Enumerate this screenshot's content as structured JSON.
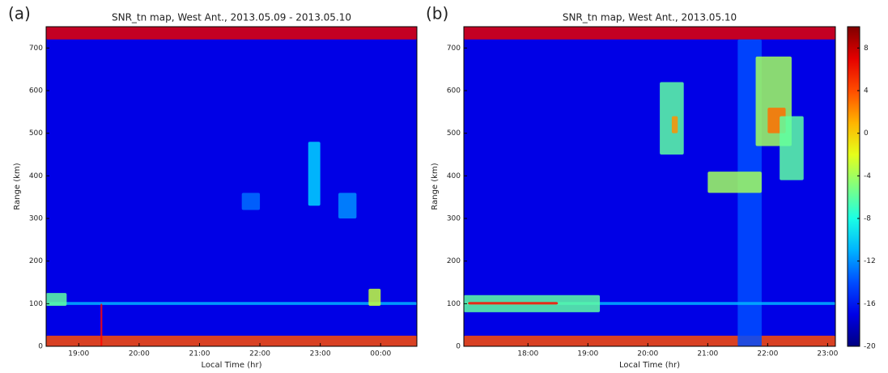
{
  "chart_data": [
    {
      "type": "heatmap",
      "panel_label": "(a)",
      "title": "SNR_tn map, West Ant., 2013.05.09 - 2013.05.10",
      "xlabel": "Local Time (hr)",
      "ylabel": "Range (km)",
      "xlim": [
        18.46,
        24.6
      ],
      "ylim": [
        0,
        750
      ],
      "xticks": [
        {
          "value": 19,
          "label": "19:00"
        },
        {
          "value": 20,
          "label": "20:00"
        },
        {
          "value": 21,
          "label": "21:00"
        },
        {
          "value": 22,
          "label": "22:00"
        },
        {
          "value": 23,
          "label": "23:00"
        },
        {
          "value": 24,
          "label": "00:00"
        }
      ],
      "yticks": [
        0,
        100,
        200,
        300,
        400,
        500,
        600,
        700
      ],
      "clim": [
        -20,
        10
      ],
      "background": -17,
      "features": [
        {
          "x": [
            18.46,
            24.6
          ],
          "y": [
            720,
            750
          ],
          "value": 7
        },
        {
          "x": [
            18.46,
            24.6
          ],
          "y": [
            0,
            25
          ],
          "value": 4
        },
        {
          "x": [
            18.46,
            24.6
          ],
          "y": [
            97,
            104
          ],
          "value": -11
        },
        {
          "x": [
            18.46,
            18.8
          ],
          "y": [
            95,
            125
          ],
          "value": -6
        },
        {
          "x": [
            23.8,
            24.0
          ],
          "y": [
            95,
            135
          ],
          "value": -3
        },
        {
          "x": [
            22.8,
            23.0
          ],
          "y": [
            330,
            480
          ],
          "value": -10
        },
        {
          "x": [
            23.3,
            23.6
          ],
          "y": [
            300,
            360
          ],
          "value": -12
        },
        {
          "x": [
            21.7,
            22.0
          ],
          "y": [
            320,
            360
          ],
          "value": -13
        },
        {
          "x": [
            19.36,
            19.39
          ],
          "y": [
            0,
            100
          ],
          "value": 6
        }
      ]
    },
    {
      "type": "heatmap",
      "panel_label": "(b)",
      "title": "SNR_tn map, West Ant., 2013.05.10",
      "xlabel": "Local Time (hr)",
      "ylabel": "Range (km)",
      "xlim": [
        16.93,
        23.13
      ],
      "ylim": [
        0,
        750
      ],
      "xticks": [
        {
          "value": 18,
          "label": "18:00"
        },
        {
          "value": 19,
          "label": "19:00"
        },
        {
          "value": 20,
          "label": "20:00"
        },
        {
          "value": 21,
          "label": "21:00"
        },
        {
          "value": 22,
          "label": "22:00"
        },
        {
          "value": 23,
          "label": "23:00"
        }
      ],
      "yticks": [
        0,
        100,
        200,
        300,
        400,
        500,
        600,
        700
      ],
      "clim": [
        -20,
        10
      ],
      "background": -17,
      "colorbar_ticks": [
        8,
        4,
        0,
        -4,
        -8,
        -12,
        -16,
        -20
      ],
      "features": [
        {
          "x": [
            16.93,
            23.13
          ],
          "y": [
            720,
            750
          ],
          "value": 7
        },
        {
          "x": [
            16.93,
            23.13
          ],
          "y": [
            0,
            25
          ],
          "value": 4
        },
        {
          "x": [
            21.5,
            21.9
          ],
          "y": [
            0,
            720
          ],
          "value": -14
        },
        {
          "x": [
            16.93,
            23.13
          ],
          "y": [
            97,
            104
          ],
          "value": -11
        },
        {
          "x": [
            16.93,
            19.2
          ],
          "y": [
            80,
            120
          ],
          "value": -6
        },
        {
          "x": [
            17.0,
            18.5
          ],
          "y": [
            98,
            104
          ],
          "value": 6
        },
        {
          "x": [
            20.2,
            20.6
          ],
          "y": [
            450,
            620
          ],
          "value": -6
        },
        {
          "x": [
            20.4,
            20.5
          ],
          "y": [
            500,
            540
          ],
          "value": 2
        },
        {
          "x": [
            21.0,
            21.9
          ],
          "y": [
            360,
            410
          ],
          "value": -4
        },
        {
          "x": [
            21.8,
            22.4
          ],
          "y": [
            470,
            680
          ],
          "value": -4
        },
        {
          "x": [
            22.0,
            22.3
          ],
          "y": [
            500,
            560
          ],
          "value": 3
        },
        {
          "x": [
            22.2,
            22.6
          ],
          "y": [
            390,
            540
          ],
          "value": -6
        }
      ]
    }
  ]
}
